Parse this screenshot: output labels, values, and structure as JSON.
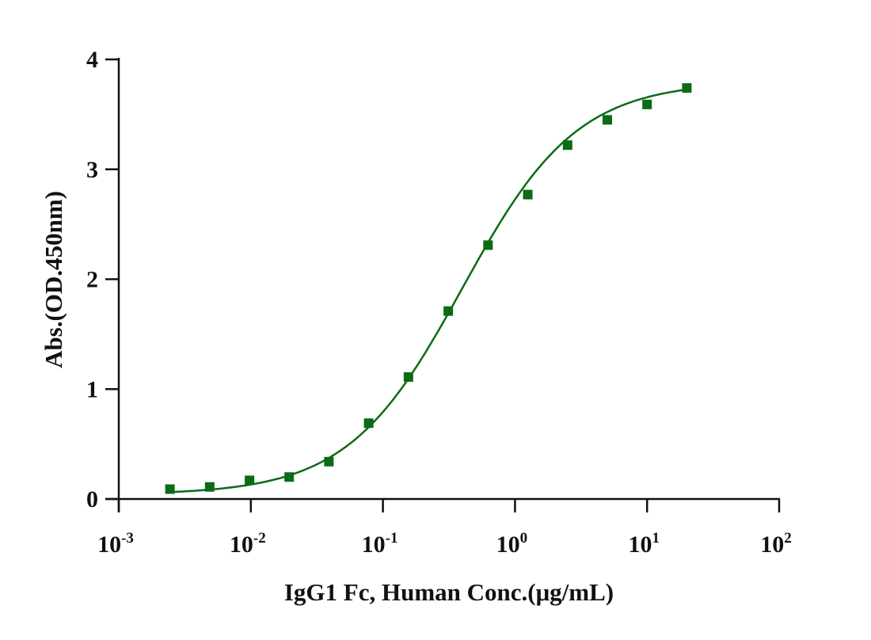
{
  "chart_data": {
    "type": "scatter",
    "title": "",
    "xlabel": "IgG1 Fc, Human Conc.(μg/mL)",
    "ylabel": "Abs.(OD.450nm)",
    "xscale": "log",
    "xlim": [
      0.001,
      100
    ],
    "ylim": [
      0,
      4
    ],
    "grid": false,
    "legend": null,
    "x_ticks": [
      {
        "value": 0.001,
        "base": "10",
        "exp": "-3"
      },
      {
        "value": 0.01,
        "base": "10",
        "exp": "-2"
      },
      {
        "value": 0.1,
        "base": "10",
        "exp": "-1"
      },
      {
        "value": 1,
        "base": "10",
        "exp": "0"
      },
      {
        "value": 10,
        "base": "10",
        "exp": "1"
      },
      {
        "value": 100,
        "base": "10",
        "exp": "2"
      }
    ],
    "y_ticks": [
      0,
      1,
      2,
      3,
      4
    ],
    "series": [
      {
        "name": "IgG1 Fc, Human",
        "color": "#0b6b16",
        "marker": "square",
        "fit": "4-parameter logistic",
        "x": [
          0.00244,
          0.00488,
          0.00977,
          0.0195,
          0.039,
          0.078,
          0.156,
          0.3125,
          0.625,
          1.25,
          2.5,
          5,
          10,
          20
        ],
        "y": [
          0.09,
          0.11,
          0.17,
          0.2,
          0.34,
          0.69,
          1.11,
          1.71,
          2.31,
          2.77,
          3.22,
          3.45,
          3.59,
          3.74
        ]
      }
    ],
    "fit_curve": {
      "bottom": 0.04,
      "top": 3.8,
      "ec50": 0.4,
      "hill": 1.0
    }
  },
  "colors": {
    "series": "#0b6b16",
    "axis": "#111111",
    "background": "#ffffff"
  }
}
